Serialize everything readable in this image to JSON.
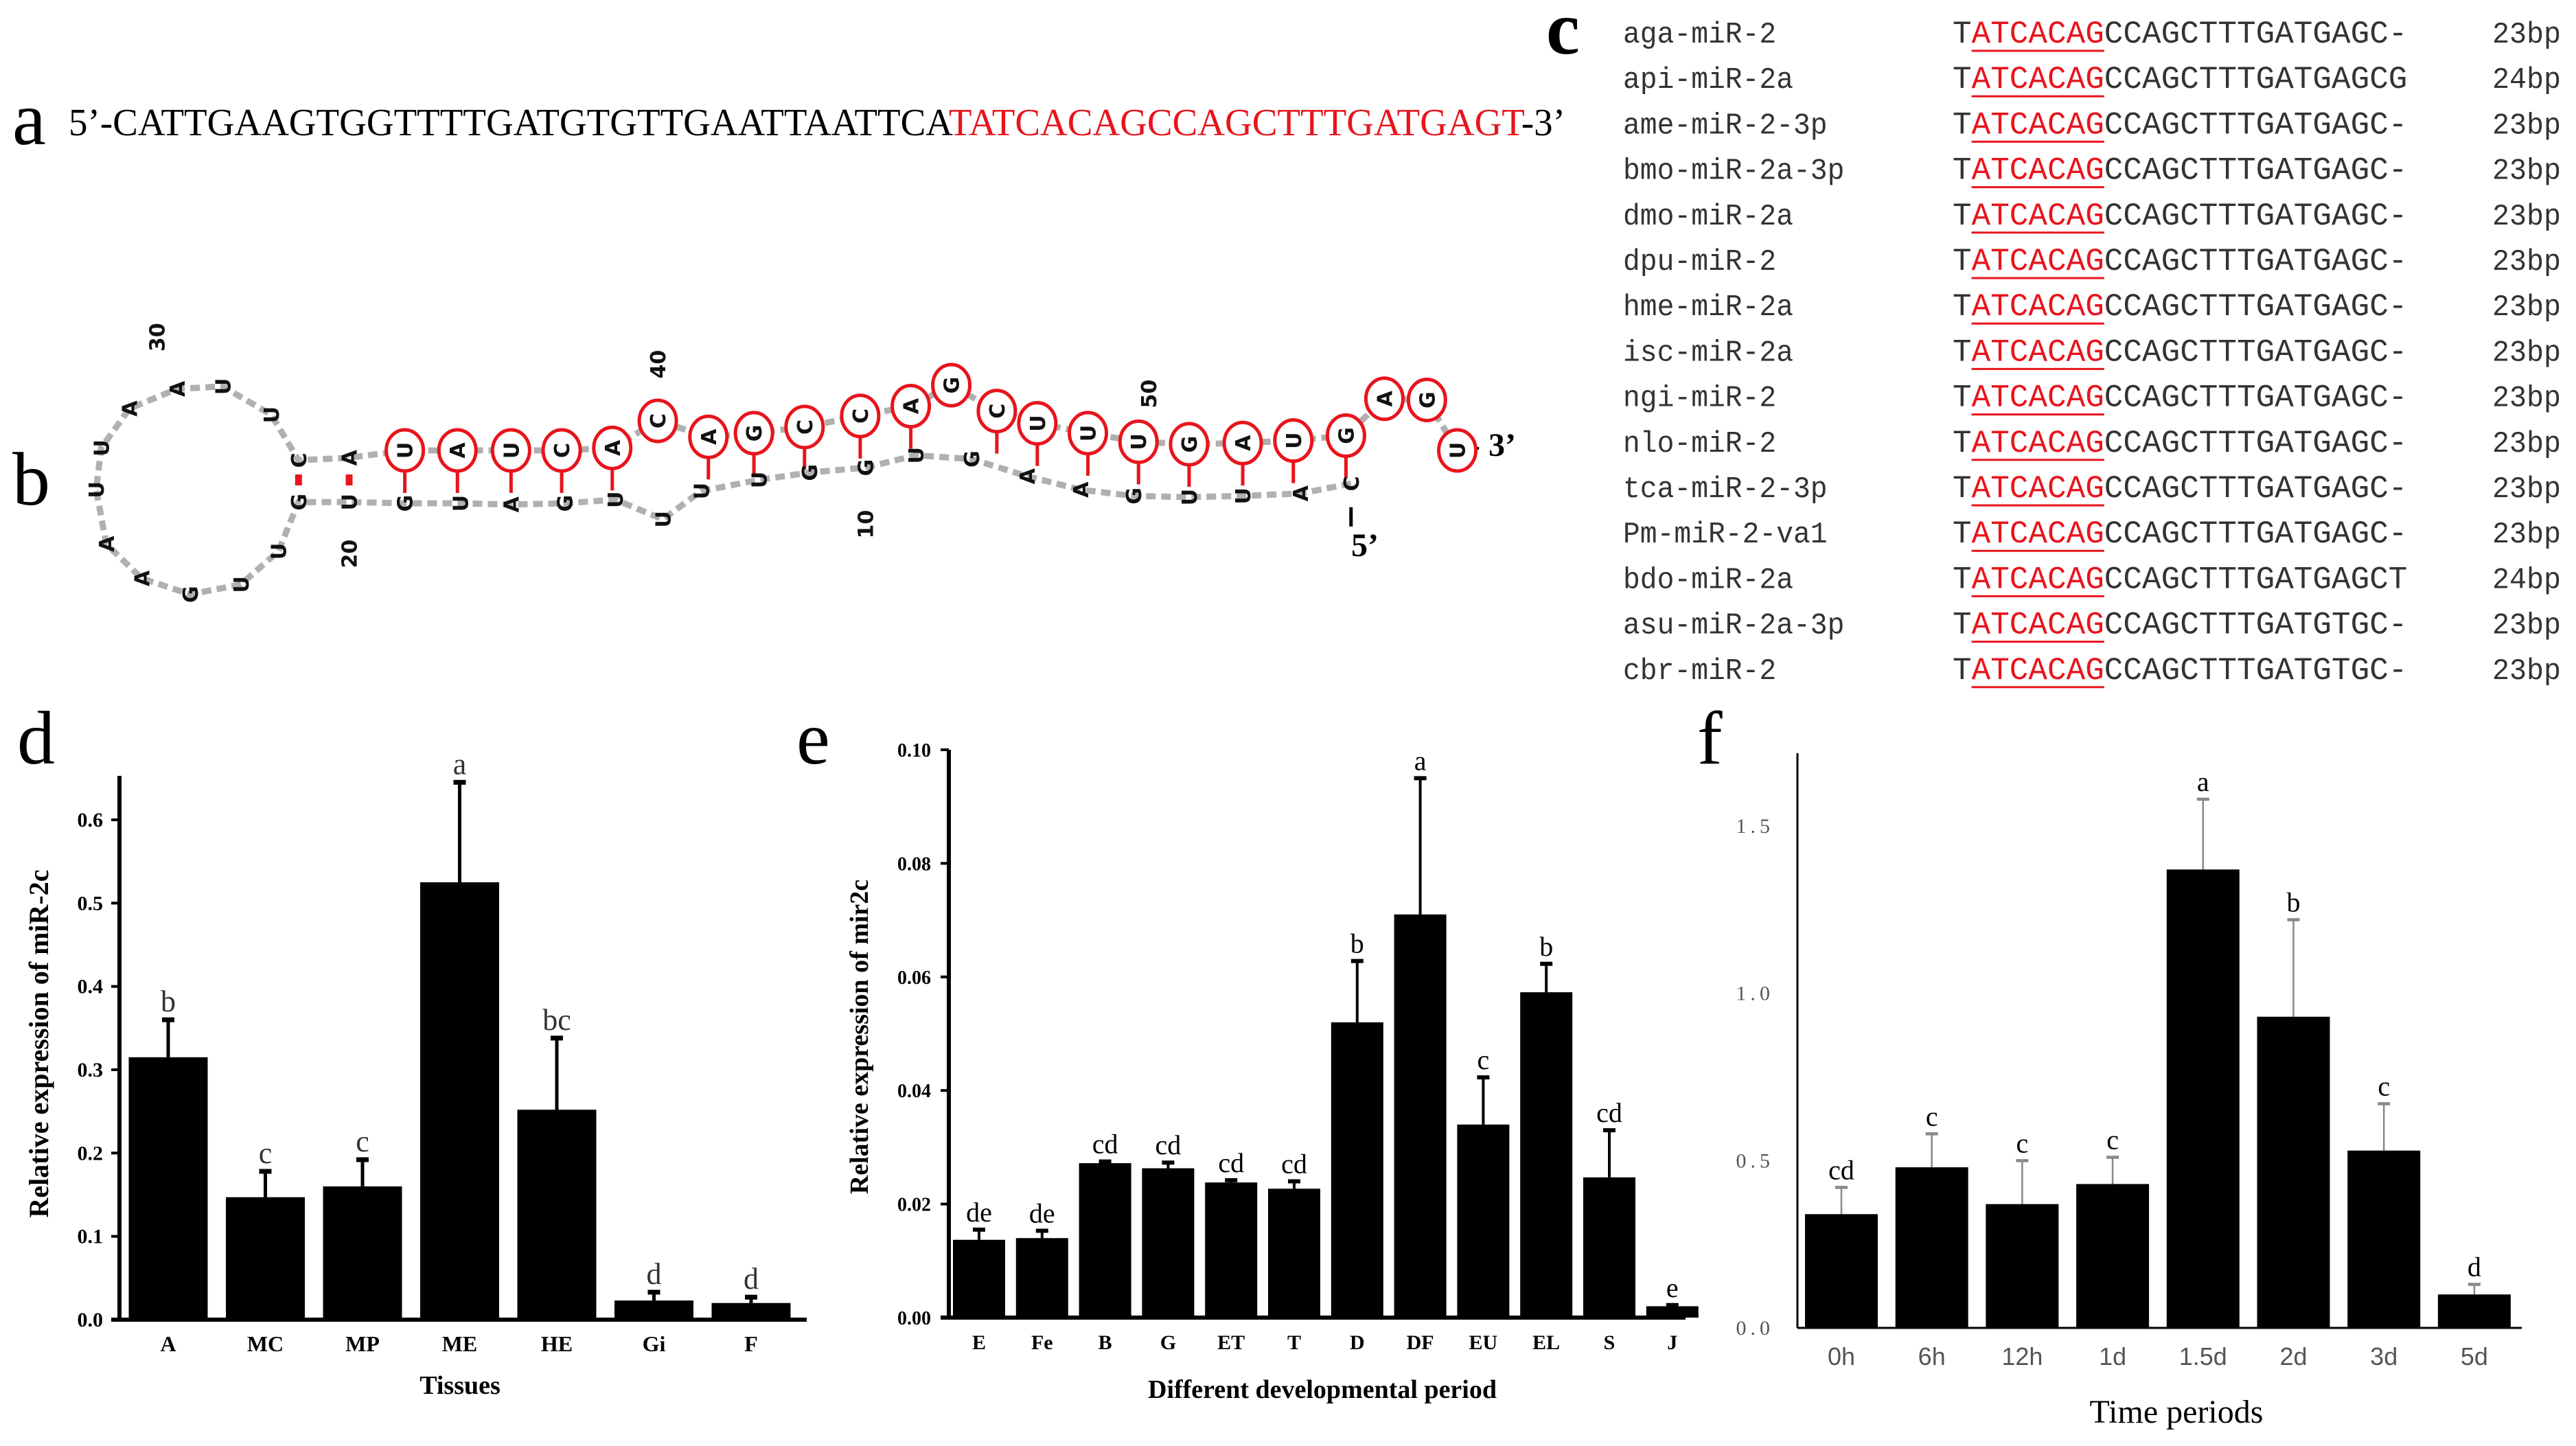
{
  "panel_labels": {
    "a": "a",
    "b": "b",
    "c": "c",
    "d": "d",
    "e": "e",
    "f": "f"
  },
  "panel_a": {
    "prefix": "5’-",
    "black_seq": "CATTGAAGTGGTTTTGATGTGTTGAATTAATTCA",
    "red_seq": "TATCACAGCCAGCTTTGATGAGT",
    "suffix": "-3’"
  },
  "panel_b": {
    "stem_loop_bases_5to3": [
      "C",
      "A",
      "U",
      "U",
      "G",
      "A",
      "A",
      "G",
      "U",
      "G",
      "G",
      "U",
      "U",
      "U",
      "U",
      "G",
      "A",
      "U",
      "G",
      "U",
      "G",
      "U",
      "U",
      "G",
      "A",
      "A",
      "U",
      "U",
      "A",
      "A",
      "U",
      "U",
      "C",
      "A"
    ],
    "mirna_bases": [
      "U",
      "A",
      "U",
      "C",
      "A",
      "C",
      "A",
      "G",
      "C",
      "C",
      "A",
      "G",
      "C",
      "U",
      "U",
      "U",
      "G",
      "A",
      "U",
      "G",
      "A",
      "G",
      "U"
    ],
    "position_labels": [
      "10",
      "20",
      "30",
      "40",
      "50"
    ],
    "end_5": "5’",
    "end_3": "- 3’",
    "colors": {
      "mirna_circle": "#e8141c",
      "backbone": "#b0b0b0"
    }
  },
  "panel_c": {
    "rows": [
      {
        "name": "aga-miR-2",
        "prefix": "T",
        "seed": "ATCACAG",
        "rest": "CCAGCTTTGATGAGC-",
        "length": "23bp"
      },
      {
        "name": "api-miR-2a",
        "prefix": "T",
        "seed": "ATCACAG",
        "rest": "CCAGCTTTGATGAGCG",
        "length": "24bp"
      },
      {
        "name": "ame-miR-2-3p",
        "prefix": "T",
        "seed": "ATCACAG",
        "rest": "CCAGCTTTGATGAGC-",
        "length": "23bp"
      },
      {
        "name": "bmo-miR-2a-3p",
        "prefix": "T",
        "seed": "ATCACAG",
        "rest": "CCAGCTTTGATGAGC-",
        "length": "23bp"
      },
      {
        "name": "dmo-miR-2a",
        "prefix": "T",
        "seed": "ATCACAG",
        "rest": "CCAGCTTTGATGAGC-",
        "length": "23bp"
      },
      {
        "name": "dpu-miR-2",
        "prefix": "T",
        "seed": "ATCACAG",
        "rest": "CCAGCTTTGATGAGC-",
        "length": "23bp"
      },
      {
        "name": "hme-miR-2a",
        "prefix": "T",
        "seed": "ATCACAG",
        "rest": "CCAGCTTTGATGAGC-",
        "length": "23bp"
      },
      {
        "name": "isc-miR-2a",
        "prefix": "T",
        "seed": "ATCACAG",
        "rest": "CCAGCTTTGATGAGC-",
        "length": "23bp"
      },
      {
        "name": "ngi-miR-2",
        "prefix": "T",
        "seed": "ATCACAG",
        "rest": "CCAGCTTTGATGAGC-",
        "length": "23bp"
      },
      {
        "name": "nlo-miR-2",
        "prefix": "T",
        "seed": "ATCACAG",
        "rest": "CCAGCTTTGATGAGC-",
        "length": "23bp"
      },
      {
        "name": "tca-miR-2-3p",
        "prefix": "T",
        "seed": "ATCACAG",
        "rest": "CCAGCTTTGATGAGC-",
        "length": "23bp"
      },
      {
        "name": "Pm-miR-2-va1",
        "prefix": "T",
        "seed": "ATCACAG",
        "rest": "CCAGCTTTGATGAGC-",
        "length": "23bp"
      },
      {
        "name": "bdo-miR-2a",
        "prefix": "T",
        "seed": "ATCACAG",
        "rest": "CCAGCTTTGATGAGCT",
        "length": "24bp"
      },
      {
        "name": "asu-miR-2a-3p",
        "prefix": "T",
        "seed": "ATCACAG",
        "rest": "CCAGCTTTGATGTGC-",
        "length": "23bp"
      },
      {
        "name": "cbr-miR-2",
        "prefix": "T",
        "seed": "ATCACAG",
        "rest": "CCAGCTTTGATGTGC-",
        "length": "23bp"
      }
    ],
    "colors": {
      "seed": "#e8141c",
      "text": "#333333"
    }
  },
  "chart_data": [
    {
      "type": "bar",
      "title": "",
      "xlabel": "Tissues",
      "ylabel": "Relative expression of miR-2c",
      "categories": [
        "A",
        "MC",
        "MP",
        "ME",
        "HE",
        "Gi",
        "F"
      ],
      "values": [
        0.315,
        0.147,
        0.16,
        0.525,
        0.252,
        0.023,
        0.02
      ],
      "error_upper": [
        0.36,
        0.178,
        0.192,
        0.645,
        0.338,
        0.033,
        0.027
      ],
      "significance": [
        "b",
        "c",
        "c",
        "a",
        "bc",
        "d",
        "d"
      ],
      "ylim": [
        0,
        0.65
      ],
      "yticks": [
        "0.0",
        "0.1",
        "0.2",
        "0.3",
        "0.4",
        "0.5",
        "0.6"
      ],
      "ytick_values": [
        0,
        0.1,
        0.2,
        0.3,
        0.4,
        0.5,
        0.6
      ],
      "grid": false
    },
    {
      "type": "bar",
      "title": "",
      "xlabel": "Different developmental period",
      "ylabel": "Relative expression of mir2c",
      "categories": [
        "E",
        "Fe",
        "B",
        "G",
        "ET",
        "T",
        "D",
        "DF",
        "EU",
        "EL",
        "S",
        "J"
      ],
      "values": [
        0.0137,
        0.014,
        0.0272,
        0.0263,
        0.0238,
        0.0227,
        0.052,
        0.071,
        0.034,
        0.0573,
        0.0247,
        0.002
      ],
      "error_upper": [
        0.0155,
        0.0153,
        0.0275,
        0.0273,
        0.0242,
        0.024,
        0.0628,
        0.095,
        0.0423,
        0.0623,
        0.033,
        0.0022
      ],
      "significance": [
        "de",
        "de",
        "cd",
        "cd",
        "cd",
        "cd",
        "b",
        "a",
        "c",
        "b",
        "cd",
        "e"
      ],
      "ylim": [
        0,
        0.1
      ],
      "yticks": [
        "0.00",
        "0.02",
        "0.04",
        "0.06",
        "0.08",
        "0.10"
      ],
      "ytick_values": [
        0,
        0.02,
        0.04,
        0.06,
        0.08,
        0.1
      ],
      "grid": false
    },
    {
      "type": "bar",
      "title": "",
      "xlabel": "Time periods",
      "ylabel": "",
      "categories": [
        "0h",
        "6h",
        "12h",
        "1d",
        "1.5d",
        "2d",
        "3d",
        "5d"
      ],
      "values": [
        0.34,
        0.48,
        0.37,
        0.43,
        1.37,
        0.93,
        0.53,
        0.1
      ],
      "error_upper": [
        0.42,
        0.58,
        0.5,
        0.51,
        1.58,
        1.22,
        0.67,
        0.13
      ],
      "significance": [
        "cd",
        "c",
        "c",
        "c",
        "a",
        "b",
        "c",
        "d"
      ],
      "ylim": [
        0,
        1.7
      ],
      "yticks": [
        "0.0",
        "0.5",
        "1.0",
        "1.5"
      ],
      "ytick_values": [
        0,
        0.5,
        1.0,
        1.5
      ],
      "grid": false
    }
  ]
}
